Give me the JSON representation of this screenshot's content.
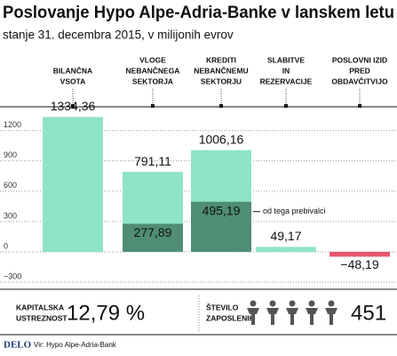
{
  "chart_data": {
    "type": "bar",
    "title": "Poslovanje Hypo Alpe-Adria-Banke v lanskem letu",
    "subtitle": "stanje 31. decembra 2015, v milijonih evrov",
    "categories": [
      [
        "BILANČNA",
        "VSOTA"
      ],
      [
        "VLOGE",
        "NEBANČNEGA",
        "SEKTORJA"
      ],
      [
        "KREDITI",
        "NEBANČNEMU",
        "SEKTORJU"
      ],
      [
        "SLABITVE",
        "IN",
        "REZERVACIJE"
      ],
      [
        "POSLOVNI IZID",
        "PRED",
        "OBDAVČITVIJO"
      ]
    ],
    "values": [
      1334.36,
      791.11,
      1006.16,
      49.17,
      -48.19
    ],
    "value_labels": [
      "1334,36",
      "791,11",
      "1006,16",
      "49,17",
      "−48,19"
    ],
    "sub_values": [
      null,
      277.89,
      495.19,
      null,
      null
    ],
    "sub_value_labels": [
      null,
      "277,89",
      "495,19",
      null,
      null
    ],
    "annotation": "od tega prebivalci",
    "color": "#8fe3c9",
    "sub_color": "#4f8e74",
    "negative_color": "#e8566f",
    "ylim": [
      -300,
      1400
    ],
    "yticks": [
      {
        "value": -300,
        "label": "−300"
      },
      0,
      300,
      600,
      900,
      1200
    ],
    "grid": true
  },
  "stats": [
    {
      "label": [
        "KAPITALSKA",
        "USTREZNOST"
      ],
      "value": "12,79 %"
    },
    {
      "label": [
        "ŠTEVILO",
        "ZAPOSLENIH"
      ],
      "value": "451"
    }
  ],
  "footer": {
    "logo": "DELO",
    "source": "Vir: Hypo Alpe-Adria-Bank"
  }
}
